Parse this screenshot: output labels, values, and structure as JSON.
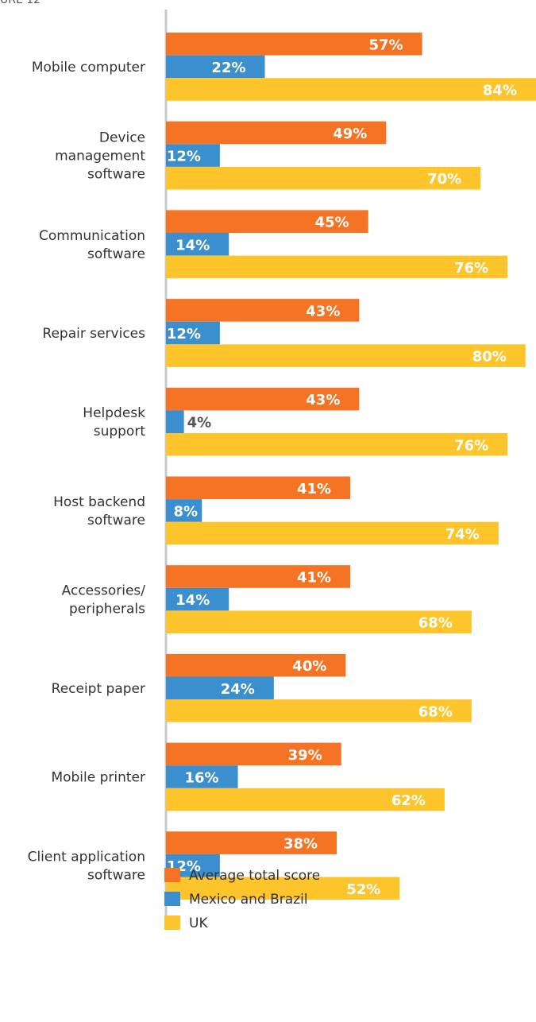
{
  "chart_data": {
    "type": "bar",
    "orientation": "horizontal",
    "title": "URE 12",
    "categories": [
      "Mobile computer",
      "Device\nmanagement\nsoftware",
      "Communication\nsoftware",
      "Repair services",
      "Helpdesk\nsupport",
      "Host backend\nsoftware",
      "Accessories/\nperipherals",
      "Receipt paper",
      "Mobile printer",
      "Client application\nsoftware"
    ],
    "series": [
      {
        "name": "Average total score",
        "color": "#f47324",
        "values": [
          57,
          49,
          45,
          43,
          43,
          41,
          41,
          40,
          39,
          38
        ]
      },
      {
        "name": "Mexico and Brazil",
        "color": "#3b8fce",
        "values": [
          22,
          12,
          14,
          12,
          4,
          8,
          14,
          24,
          16,
          12
        ]
      },
      {
        "name": "UK",
        "color": "#fdc52b",
        "values": [
          84,
          70,
          76,
          80,
          76,
          74,
          68,
          68,
          62,
          52
        ]
      }
    ],
    "value_labels_format": "%",
    "xlim": [
      0,
      100
    ]
  }
}
